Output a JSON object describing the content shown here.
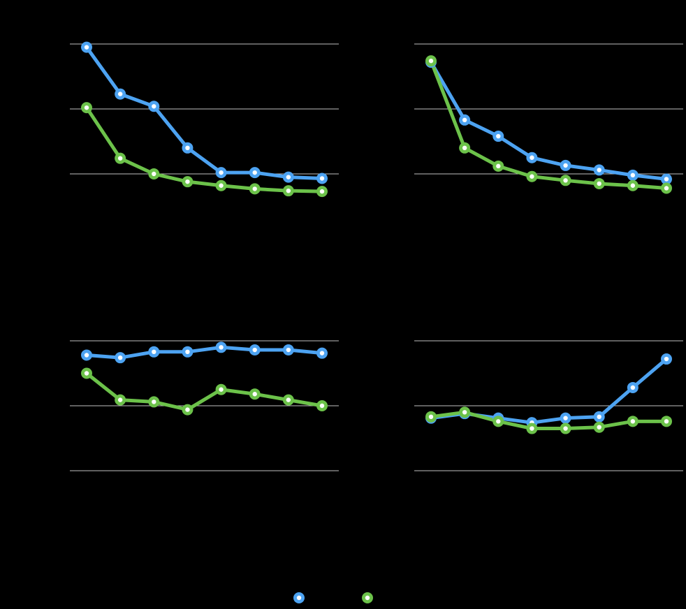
{
  "colors": {
    "background": "#000000",
    "gridline": "#bfbfbf",
    "series_a": "#4da3f2",
    "series_b": "#6cc24a",
    "marker_center": "#ffffff"
  },
  "legend": {
    "placement": "bottom-center",
    "entries": [
      {
        "series_key": "series_a",
        "label": ""
      },
      {
        "series_key": "series_b",
        "label": ""
      }
    ]
  },
  "chart_data": [
    {
      "type": "line",
      "grid": "horizontal",
      "ylim": [
        0,
        3
      ],
      "gridlines_at": [
        1,
        2,
        3
      ],
      "x": [
        1,
        2,
        3,
        4,
        5,
        6,
        7,
        8
      ],
      "series": [
        {
          "color": "#4da3f2",
          "values": [
            2.95,
            2.23,
            2.04,
            1.4,
            1.02,
            1.02,
            0.95,
            0.93
          ]
        },
        {
          "color": "#6cc24a",
          "values": [
            2.02,
            1.24,
            1.0,
            0.88,
            0.82,
            0.77,
            0.74,
            0.73
          ]
        }
      ]
    },
    {
      "type": "line",
      "grid": "horizontal",
      "ylim": [
        0,
        3
      ],
      "gridlines_at": [
        1,
        2,
        3
      ],
      "x": [
        1,
        2,
        3,
        4,
        5,
        6,
        7,
        8
      ],
      "series": [
        {
          "color": "#4da3f2",
          "values": [
            2.72,
            1.83,
            1.58,
            1.25,
            1.13,
            1.06,
            0.98,
            0.92
          ]
        },
        {
          "color": "#6cc24a",
          "values": [
            2.74,
            1.4,
            1.12,
            0.96,
            0.9,
            0.85,
            0.82,
            0.78
          ]
        }
      ]
    },
    {
      "type": "line",
      "grid": "horizontal",
      "ylim": [
        0,
        3
      ],
      "gridlines_at": [
        1,
        2,
        3
      ],
      "x": [
        1,
        2,
        3,
        4,
        5,
        6,
        7,
        8
      ],
      "series": [
        {
          "color": "#4da3f2",
          "values": [
            2.78,
            2.74,
            2.83,
            2.83,
            2.9,
            2.86,
            2.86,
            2.81
          ]
        },
        {
          "color": "#6cc24a",
          "values": [
            2.5,
            2.09,
            2.06,
            1.94,
            2.25,
            2.18,
            2.09,
            2.0
          ]
        }
      ]
    },
    {
      "type": "line",
      "grid": "horizontal",
      "ylim": [
        0,
        3
      ],
      "gridlines_at": [
        1,
        2,
        3
      ],
      "x": [
        1,
        2,
        3,
        4,
        5,
        6,
        7,
        8
      ],
      "series": [
        {
          "color": "#4da3f2",
          "values": [
            1.81,
            1.88,
            1.81,
            1.74,
            1.81,
            1.83,
            2.28,
            2.72
          ]
        },
        {
          "color": "#6cc24a",
          "values": [
            1.83,
            1.9,
            1.76,
            1.65,
            1.65,
            1.67,
            1.76,
            1.76
          ]
        }
      ]
    }
  ]
}
